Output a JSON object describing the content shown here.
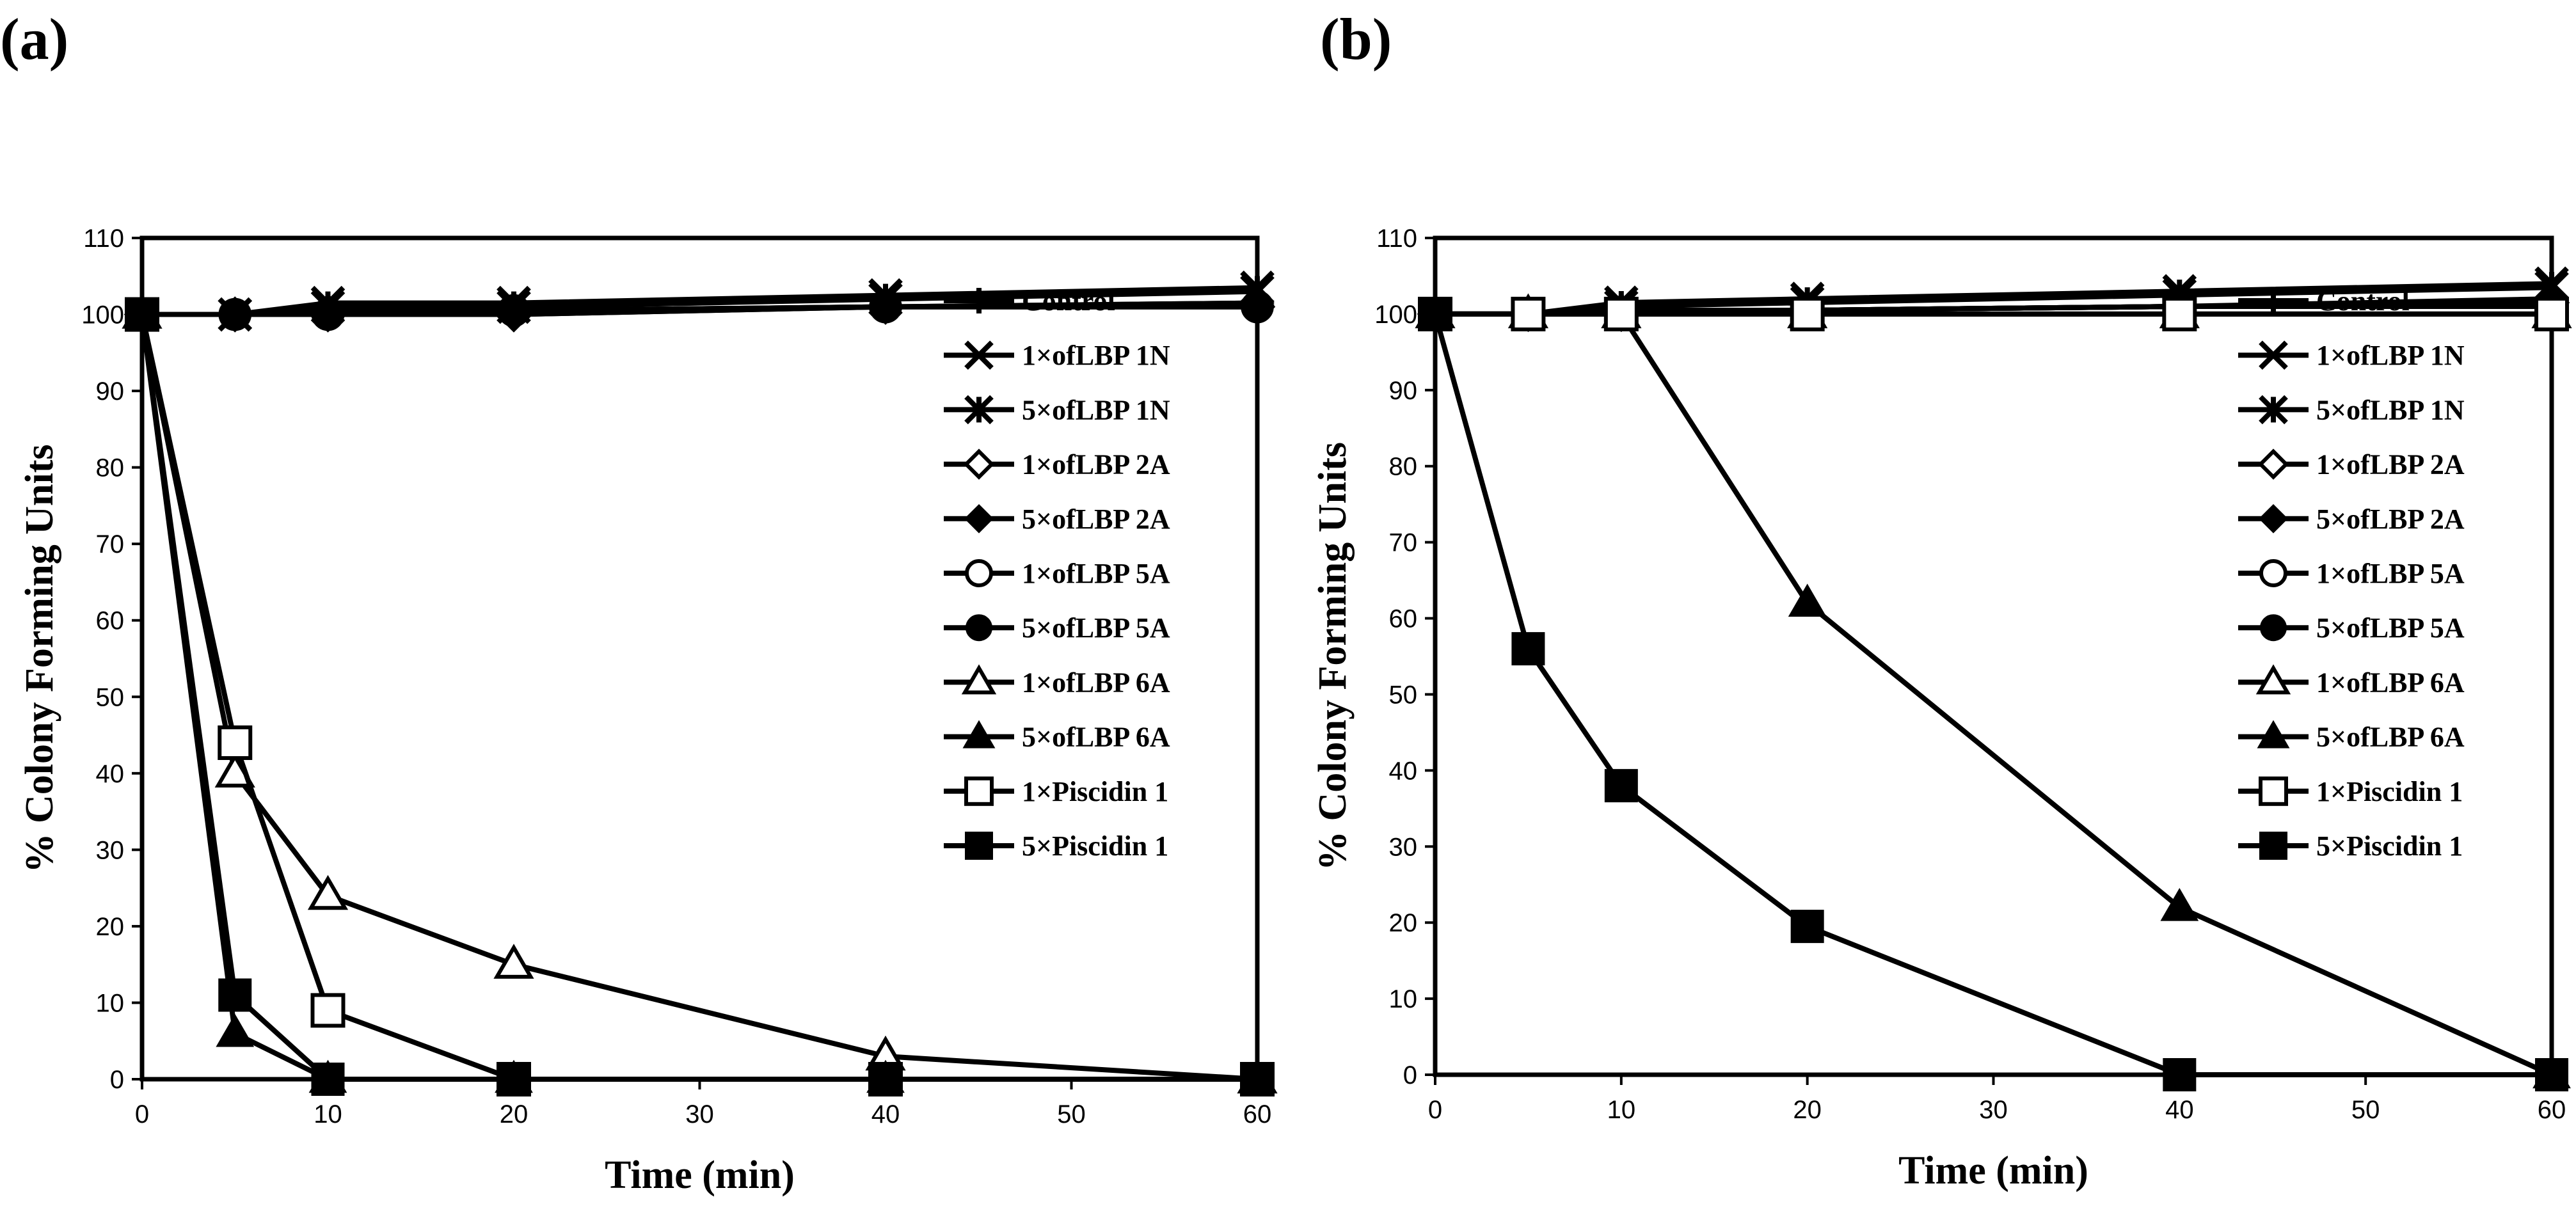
{
  "chart_data": [
    {
      "type": "line",
      "panel_label": "(a)",
      "xlabel": "Time (min)",
      "ylabel": "% Colony Forming Units",
      "xlim": [
        0,
        60
      ],
      "ylim": [
        0,
        110
      ],
      "xticks": [
        0,
        10,
        20,
        30,
        40,
        50,
        60
      ],
      "yticks": [
        0,
        10,
        20,
        30,
        40,
        50,
        60,
        70,
        80,
        90,
        100,
        110
      ],
      "grid": false,
      "legend_position": "right",
      "series": [
        {
          "name": "Control",
          "marker": "plus",
          "x": [
            0,
            5,
            10,
            20,
            40,
            60
          ],
          "y": [
            100,
            100,
            100.5,
            100.5,
            101,
            101.5
          ]
        },
        {
          "name": "1×ofLBP 1N",
          "marker": "x",
          "x": [
            0,
            5,
            10,
            20,
            40,
            60
          ],
          "y": [
            100,
            100,
            101.5,
            101.5,
            102.5,
            103.5
          ]
        },
        {
          "name": "5×ofLBP 1N",
          "marker": "star",
          "x": [
            0,
            5,
            10,
            20,
            40,
            60
          ],
          "y": [
            100,
            100,
            101,
            101,
            102,
            103
          ]
        },
        {
          "name": "1×ofLBP 2A",
          "marker": "diamond-open",
          "x": [
            0,
            5,
            10,
            20,
            40,
            60
          ],
          "y": [
            100,
            100,
            100,
            100,
            101,
            101
          ]
        },
        {
          "name": "5×ofLBP 2A",
          "marker": "diamond-filled",
          "x": [
            0,
            5,
            10,
            20,
            40,
            60
          ],
          "y": [
            100,
            100,
            100.5,
            100,
            101,
            101.5
          ]
        },
        {
          "name": "1×ofLBP 5A",
          "marker": "circle-open",
          "x": [
            0,
            5,
            10,
            20,
            40,
            60
          ],
          "y": [
            100,
            100,
            100,
            100.5,
            101,
            101
          ]
        },
        {
          "name": "5×ofLBP 5A",
          "marker": "circle-filled",
          "x": [
            0,
            5,
            10,
            20,
            40,
            60
          ],
          "y": [
            100,
            100,
            100,
            100.5,
            101,
            101
          ]
        },
        {
          "name": "1×ofLBP 6A",
          "marker": "triangle-open",
          "x": [
            0,
            5,
            10,
            20,
            40,
            60
          ],
          "y": [
            100,
            40,
            24,
            15,
            3,
            0
          ]
        },
        {
          "name": "5×ofLBP 6A",
          "marker": "triangle-filled",
          "x": [
            0,
            5,
            10,
            20,
            40,
            60
          ],
          "y": [
            100,
            6,
            0,
            0,
            0,
            0
          ]
        },
        {
          "name": "1×Piscidin 1",
          "marker": "square-open",
          "x": [
            0,
            5,
            10,
            20,
            40,
            60
          ],
          "y": [
            100,
            44,
            9,
            0,
            0,
            0
          ]
        },
        {
          "name": "5×Piscidin 1",
          "marker": "square-filled",
          "x": [
            0,
            5,
            10,
            20,
            40,
            60
          ],
          "y": [
            100,
            11,
            0,
            0,
            0,
            0
          ]
        }
      ]
    },
    {
      "type": "line",
      "panel_label": "(b)",
      "xlabel": "Time (min)",
      "ylabel": "% Colony Forming Units",
      "xlim": [
        0,
        60
      ],
      "ylim": [
        0,
        110
      ],
      "xticks": [
        0,
        10,
        20,
        30,
        40,
        50,
        60
      ],
      "yticks": [
        0,
        10,
        20,
        30,
        40,
        50,
        60,
        70,
        80,
        90,
        100,
        110
      ],
      "grid": false,
      "legend_position": "right",
      "series": [
        {
          "name": "Control",
          "marker": "plus",
          "x": [
            0,
            5,
            10,
            20,
            40,
            60
          ],
          "y": [
            100,
            100,
            100.5,
            100.5,
            101,
            101.5
          ]
        },
        {
          "name": "1×ofLBP 1N",
          "marker": "x",
          "x": [
            0,
            5,
            10,
            20,
            40,
            60
          ],
          "y": [
            100,
            100,
            101.5,
            102,
            103,
            104
          ]
        },
        {
          "name": "5×ofLBP 1N",
          "marker": "star",
          "x": [
            0,
            5,
            10,
            20,
            40,
            60
          ],
          "y": [
            100,
            100,
            101,
            101.5,
            102.5,
            103.5
          ]
        },
        {
          "name": "1×ofLBP 2A",
          "marker": "diamond-open",
          "x": [
            0,
            5,
            10,
            20,
            40,
            60
          ],
          "y": [
            100,
            100,
            100,
            100.5,
            101,
            101.5
          ]
        },
        {
          "name": "5×ofLBP 2A",
          "marker": "diamond-filled",
          "x": [
            0,
            5,
            10,
            20,
            40,
            60
          ],
          "y": [
            100,
            100,
            100.5,
            100.5,
            101,
            102
          ]
        },
        {
          "name": "1×ofLBP 5A",
          "marker": "circle-open",
          "x": [
            0,
            5,
            10,
            20,
            40,
            60
          ],
          "y": [
            100,
            100,
            100,
            100.5,
            101,
            101
          ]
        },
        {
          "name": "5×ofLBP 5A",
          "marker": "circle-filled",
          "x": [
            0,
            5,
            10,
            20,
            40,
            60
          ],
          "y": [
            100,
            100,
            100,
            100.5,
            101,
            101
          ]
        },
        {
          "name": "1×ofLBP 6A",
          "marker": "triangle-open",
          "x": [
            0,
            5,
            10,
            20,
            40,
            60
          ],
          "y": [
            100,
            100,
            100,
            100,
            100,
            100
          ]
        },
        {
          "name": "5×ofLBP 6A",
          "marker": "triangle-filled",
          "x": [
            0,
            5,
            10,
            20,
            40,
            60
          ],
          "y": [
            100,
            100,
            100,
            62,
            22,
            0
          ]
        },
        {
          "name": "1×Piscidin 1",
          "marker": "square-open",
          "x": [
            0,
            5,
            10,
            20,
            40,
            60
          ],
          "y": [
            100,
            100,
            100,
            100,
            100,
            100
          ]
        },
        {
          "name": "5×Piscidin 1",
          "marker": "square-filled",
          "x": [
            0,
            5,
            10,
            20,
            40,
            60
          ],
          "y": [
            100,
            56,
            38,
            19.5,
            0,
            0
          ]
        }
      ]
    }
  ]
}
